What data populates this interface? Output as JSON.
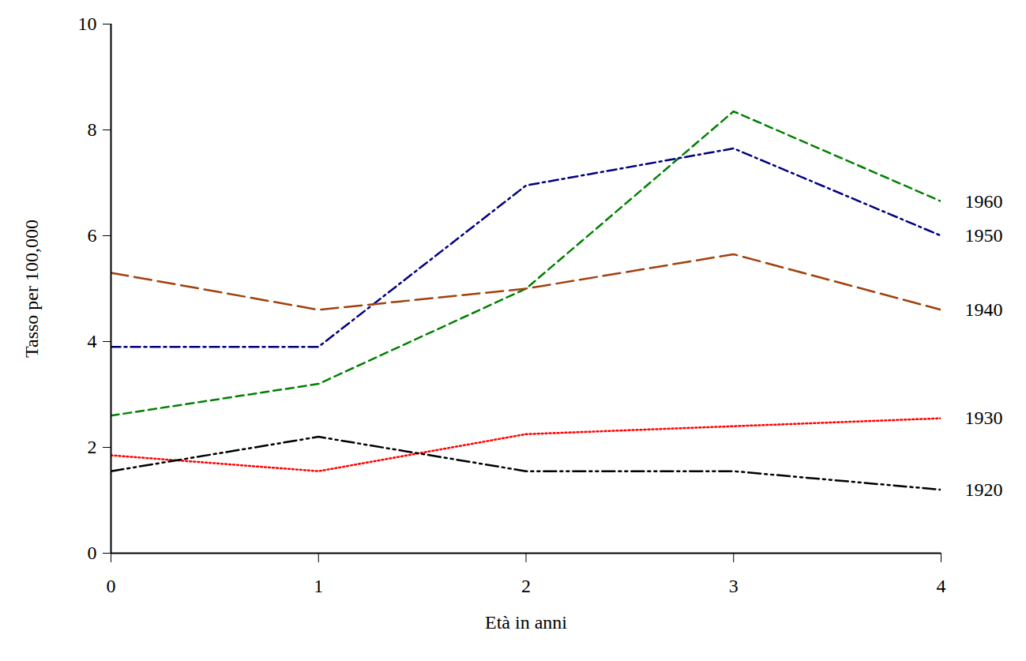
{
  "chart_data": {
    "type": "line",
    "x_label": "Età in anni",
    "y_label": "Tasso per 100,000",
    "x": [
      0,
      1,
      2,
      3,
      4
    ],
    "xlim": [
      0,
      4
    ],
    "xticks": [
      0,
      1,
      2,
      3,
      4
    ],
    "ylim": [
      0,
      10
    ],
    "yticks": [
      0,
      2,
      4,
      6,
      8,
      10
    ],
    "grid": false,
    "series": [
      {
        "name": "1960",
        "color": "#008000",
        "line_style": "dashed",
        "values": [
          2.6,
          3.2,
          5.0,
          8.35,
          6.65
        ]
      },
      {
        "name": "1950",
        "color": "#000080",
        "line_style": "dashdot",
        "values": [
          3.9,
          3.9,
          6.95,
          7.65,
          6.0
        ]
      },
      {
        "name": "1940",
        "color": "#a0410d",
        "line_style": "longdash",
        "values": [
          5.3,
          4.6,
          5.0,
          5.65,
          4.6
        ]
      },
      {
        "name": "1930",
        "color": "#ff0000",
        "line_style": "dotted",
        "values": [
          1.85,
          1.55,
          2.25,
          2.4,
          2.55
        ]
      },
      {
        "name": "1920",
        "color": "#000000",
        "line_style": "dashdotdot",
        "values": [
          1.55,
          2.2,
          1.55,
          1.55,
          1.2
        ]
      }
    ]
  }
}
